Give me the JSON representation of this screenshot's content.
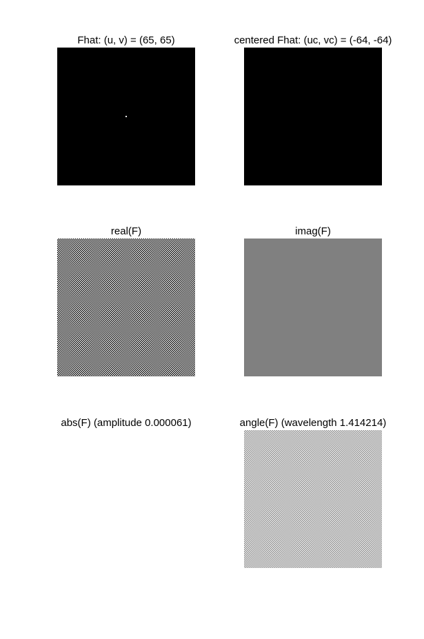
{
  "figure": {
    "panels": [
      {
        "title": "Fhat: (u, v) = (65, 65)",
        "fill": "#000000",
        "content": "black image with single white pixel at center"
      },
      {
        "title": "centered Fhat: (uc, vc) = (-64, -64)",
        "fill": "#000000",
        "content": "solid black image"
      },
      {
        "title": "real(F)",
        "fill": "#000000",
        "content": "fine checkerboard pattern"
      },
      {
        "title": "imag(F)",
        "fill": "#808080",
        "content": "uniform gray image"
      },
      {
        "title": "abs(F) (amplitude 0.000061)",
        "fill": "#ffffff",
        "content": "blank white image"
      },
      {
        "title": "angle(F) (wavelength 1.414214)",
        "fill": "#8c8c8c",
        "content": "light checkerboard pattern"
      }
    ]
  }
}
